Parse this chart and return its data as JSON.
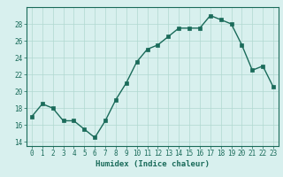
{
  "x": [
    0,
    1,
    2,
    3,
    4,
    5,
    6,
    7,
    8,
    9,
    10,
    11,
    12,
    13,
    14,
    15,
    16,
    17,
    18,
    19,
    20,
    21,
    22,
    23
  ],
  "y": [
    17.0,
    18.5,
    18.0,
    16.5,
    16.5,
    15.5,
    14.5,
    16.5,
    19.0,
    21.0,
    23.5,
    25.0,
    25.5,
    26.5,
    27.5,
    27.5,
    27.5,
    29.0,
    28.5,
    28.0,
    25.5,
    22.5,
    23.0,
    20.5
  ],
  "line_color": "#1a6b5a",
  "marker_color": "#1a6b5a",
  "bg_color": "#d8f0ee",
  "grid_color": "#b0d8d0",
  "xlabel": "Humidex (Indice chaleur)",
  "ylim": [
    13.5,
    30
  ],
  "xlim": [
    -0.5,
    23.5
  ],
  "yticks": [
    14,
    16,
    18,
    20,
    22,
    24,
    26,
    28
  ],
  "xticks": [
    0,
    1,
    2,
    3,
    4,
    5,
    6,
    7,
    8,
    9,
    10,
    11,
    12,
    13,
    14,
    15,
    16,
    17,
    18,
    19,
    20,
    21,
    22,
    23
  ],
  "label_fontsize": 6.5,
  "tick_fontsize": 5.5,
  "line_width": 1.0,
  "marker_size": 2.5
}
